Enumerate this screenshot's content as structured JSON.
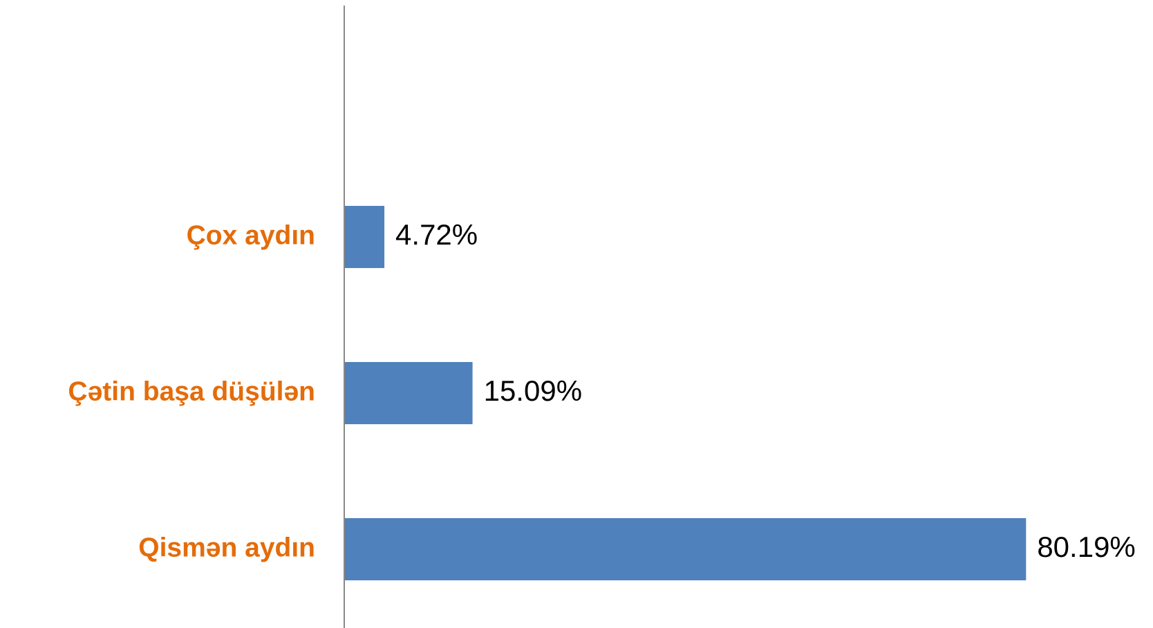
{
  "chart_data": {
    "type": "bar",
    "orientation": "horizontal",
    "categories": [
      "Çox aydın",
      "Çətin başa düşülən",
      "Qismən aydın"
    ],
    "values": [
      4.72,
      15.09,
      80.19
    ],
    "value_labels": [
      "4.72%",
      "15.09%",
      "80.19%"
    ],
    "color": "#4f81bd"
  }
}
